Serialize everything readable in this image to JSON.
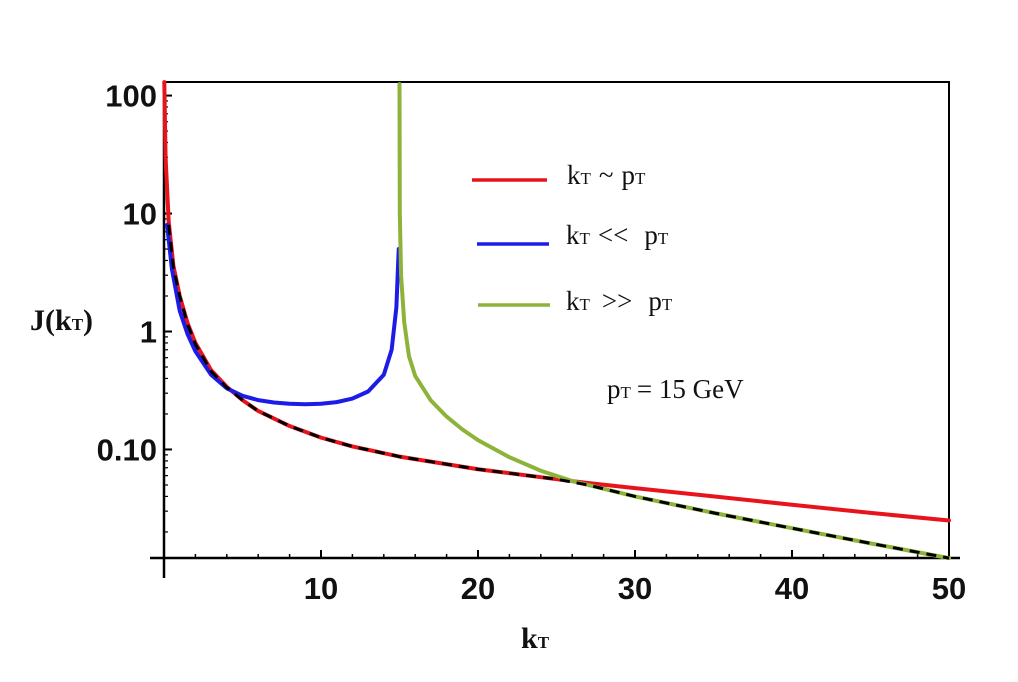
{
  "chart_data": {
    "type": "line",
    "title": "",
    "xlabel": {
      "main": "k",
      "sub": "T"
    },
    "ylabel": {
      "main": "J(k",
      "sub": "T",
      "end": ")"
    },
    "x_range": [
      0,
      50
    ],
    "y_range": [
      0.012,
      130
    ],
    "y_scale": "log",
    "x_ticks": [
      {
        "value": 10,
        "label": "10"
      },
      {
        "value": 20,
        "label": "20"
      },
      {
        "value": 30,
        "label": "30"
      },
      {
        "value": 40,
        "label": "40"
      },
      {
        "value": 50,
        "label": "50"
      }
    ],
    "y_ticks": [
      {
        "value": 100,
        "label": "100"
      },
      {
        "value": 10,
        "label": "10"
      },
      {
        "value": 1,
        "label": "1"
      },
      {
        "value": 0.1,
        "label": "0.10"
      }
    ],
    "pT": 15,
    "series": [
      {
        "name": "kT ~ pT",
        "legend": {
          "k": "k",
          "ksub": "T",
          "rel": "~",
          "p": "p",
          "psub": "T"
        },
        "color": "#e8141c",
        "points": [
          [
            0.02,
            130
          ],
          [
            0.1,
            30
          ],
          [
            0.3,
            8.5
          ],
          [
            0.6,
            3.6
          ],
          [
            1,
            2
          ],
          [
            1.5,
            1.18
          ],
          [
            2,
            0.8
          ],
          [
            3,
            0.47
          ],
          [
            4,
            0.34
          ],
          [
            5,
            0.262
          ],
          [
            6,
            0.212
          ],
          [
            8,
            0.158
          ],
          [
            10,
            0.126
          ],
          [
            12,
            0.106
          ],
          [
            15,
            0.087
          ],
          [
            20,
            0.068
          ],
          [
            25,
            0.056
          ],
          [
            27,
            0.052
          ],
          [
            30,
            0.047
          ],
          [
            35,
            0.04
          ],
          [
            40,
            0.034
          ],
          [
            45,
            0.029
          ],
          [
            50,
            0.025
          ]
        ]
      },
      {
        "name": "kT << pT",
        "legend": {
          "k": "k",
          "ksub": "T",
          "rel": "<<",
          "p": "p",
          "psub": "T"
        },
        "color": "#1c1ce8",
        "points": [
          [
            0.2,
            8
          ],
          [
            0.5,
            3.4
          ],
          [
            1,
            1.5
          ],
          [
            1.5,
            0.95
          ],
          [
            2,
            0.68
          ],
          [
            3,
            0.43
          ],
          [
            4,
            0.33
          ],
          [
            5,
            0.285
          ],
          [
            6,
            0.262
          ],
          [
            7,
            0.25
          ],
          [
            8,
            0.244
          ],
          [
            9,
            0.242
          ],
          [
            10,
            0.244
          ],
          [
            11,
            0.252
          ],
          [
            12,
            0.27
          ],
          [
            13,
            0.31
          ],
          [
            14,
            0.43
          ],
          [
            14.5,
            0.7
          ],
          [
            14.8,
            1.6
          ],
          [
            14.95,
            5
          ]
        ]
      },
      {
        "name": "kT >> pT",
        "legend": {
          "k": "k",
          "ksub": "T",
          "rel": ">>",
          "p": "p",
          "psub": "T"
        },
        "color": "#8db33a",
        "points": [
          [
            15,
            125
          ],
          [
            15.02,
            10
          ],
          [
            15.1,
            3
          ],
          [
            15.3,
            1.2
          ],
          [
            15.6,
            0.62
          ],
          [
            16,
            0.42
          ],
          [
            17,
            0.26
          ],
          [
            18,
            0.19
          ],
          [
            19,
            0.148
          ],
          [
            20,
            0.12
          ],
          [
            22,
            0.086
          ],
          [
            24,
            0.066
          ],
          [
            26,
            0.054
          ],
          [
            27,
            0.05
          ],
          [
            30,
            0.04
          ],
          [
            35,
            0.029
          ],
          [
            40,
            0.0215
          ],
          [
            45,
            0.016
          ],
          [
            50,
            0.012
          ]
        ]
      },
      {
        "name": "envelope",
        "color": "#000000",
        "dashed": true,
        "points": [
          [
            0.3,
            8
          ],
          [
            0.6,
            3.5
          ],
          [
            1,
            2
          ],
          [
            1.5,
            1.15
          ],
          [
            2,
            0.78
          ],
          [
            3,
            0.46
          ],
          [
            4,
            0.335
          ],
          [
            5,
            0.262
          ],
          [
            6,
            0.212
          ],
          [
            8,
            0.158
          ],
          [
            10,
            0.126
          ],
          [
            12,
            0.106
          ],
          [
            15,
            0.087
          ],
          [
            20,
            0.068
          ],
          [
            25,
            0.056
          ],
          [
            27,
            0.05
          ],
          [
            30,
            0.04
          ],
          [
            35,
            0.029
          ],
          [
            40,
            0.0215
          ],
          [
            45,
            0.016
          ],
          [
            50,
            0.012
          ]
        ]
      }
    ],
    "annotation": {
      "p": "p",
      "psub": "T",
      "text": "= 15 GeV"
    }
  }
}
